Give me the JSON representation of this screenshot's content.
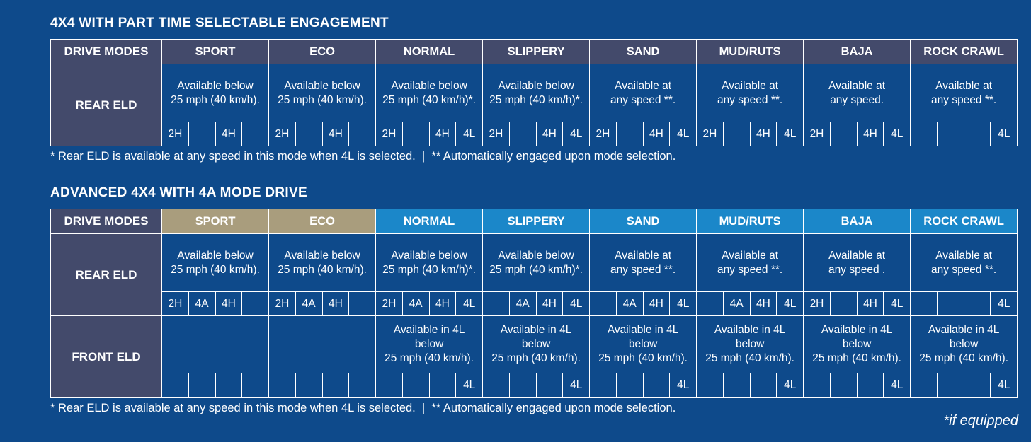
{
  "tables": [
    {
      "title": "4X4 WITH PART TIME SELECTABLE ENGAGEMENT",
      "header_label": "DRIVE MODES",
      "modes": [
        {
          "name": "SPORT",
          "color": "#434a6b"
        },
        {
          "name": "ECO",
          "color": "#434a6b"
        },
        {
          "name": "NORMAL",
          "color": "#434a6b"
        },
        {
          "name": "SLIPPERY",
          "color": "#434a6b"
        },
        {
          "name": "SAND",
          "color": "#434a6b"
        },
        {
          "name": "MUD/RUTS",
          "color": "#434a6b"
        },
        {
          "name": "BAJA",
          "color": "#434a6b"
        },
        {
          "name": "ROCK CRAWL",
          "color": "#434a6b"
        }
      ],
      "rows": [
        {
          "label": "REAR ELD",
          "texts": [
            "Available below\n25 mph (40 km/h).",
            "Available below\n25 mph (40 km/h).",
            "Available below\n25 mph (40 km/h)*.",
            "Available below\n25 mph (40 km/h)*.",
            "Available at\nany speed **.",
            "Available at\nany speed **.",
            "Available at\nany speed.",
            "Available at\nany speed **."
          ],
          "cells": [
            [
              "2H",
              null,
              "4H",
              null
            ],
            [
              "2H",
              null,
              "4H",
              null
            ],
            [
              "2H",
              null,
              "4H",
              "4L"
            ],
            [
              "2H",
              null,
              "4H",
              "4L"
            ],
            [
              "2H",
              null,
              "4H",
              "4L"
            ],
            [
              "2H",
              null,
              "4H",
              "4L"
            ],
            [
              "2H",
              null,
              "4H",
              "4L"
            ],
            [
              null,
              null,
              null,
              "4L"
            ]
          ]
        }
      ],
      "footnote": "* Rear ELD is available at any speed in this mode when 4L is selected.  |  ** Automatically engaged upon mode selection."
    },
    {
      "title": "ADVANCED 4X4 WITH 4A MODE DRIVE",
      "header_label": "DRIVE MODES",
      "modes": [
        {
          "name": "SPORT",
          "color": "#a99d7d"
        },
        {
          "name": "ECO",
          "color": "#a99d7d"
        },
        {
          "name": "NORMAL",
          "color": "#1b87c9"
        },
        {
          "name": "SLIPPERY",
          "color": "#1b87c9"
        },
        {
          "name": "SAND",
          "color": "#1b87c9"
        },
        {
          "name": "MUD/RUTS",
          "color": "#1b87c9"
        },
        {
          "name": "BAJA",
          "color": "#1b87c9"
        },
        {
          "name": "ROCK CRAWL",
          "color": "#1b87c9"
        }
      ],
      "rows": [
        {
          "label": "REAR ELD",
          "texts": [
            "Available below\n25 mph (40 km/h).",
            "Available below\n25 mph (40 km/h).",
            "Available below\n25 mph (40 km/h)*.",
            "Available below\n25 mph (40 km/h)*.",
            "Available at\nany speed **.",
            "Available at\nany speed **.",
            "Available at\nany speed .",
            "Available at\nany speed **."
          ],
          "cells": [
            [
              "2H",
              "4A",
              "4H",
              null
            ],
            [
              "2H",
              "4A",
              "4H",
              null
            ],
            [
              "2H",
              "4A",
              "4H",
              "4L"
            ],
            [
              null,
              "4A",
              "4H",
              "4L"
            ],
            [
              null,
              "4A",
              "4H",
              "4L"
            ],
            [
              null,
              "4A",
              "4H",
              "4L"
            ],
            [
              "2H",
              null,
              "4H",
              "4L"
            ],
            [
              null,
              null,
              null,
              "4L"
            ]
          ]
        },
        {
          "label": "FRONT ELD",
          "texts": [
            null,
            null,
            "Available in 4L\nbelow\n25 mph (40 km/h).",
            "Available in 4L\nbelow\n25 mph (40 km/h).",
            "Available in 4L\nbelow\n25 mph (40 km/h).",
            "Available in 4L\nbelow\n25 mph (40 km/h).",
            "Available in 4L\nbelow\n25 mph (40 km/h).",
            "Available in 4L\nbelow\n25 mph (40 km/h)."
          ],
          "cells": [
            [
              null,
              null,
              null,
              null
            ],
            [
              null,
              null,
              null,
              null
            ],
            [
              null,
              null,
              null,
              "4L"
            ],
            [
              null,
              null,
              null,
              "4L"
            ],
            [
              null,
              null,
              null,
              "4L"
            ],
            [
              null,
              null,
              null,
              "4L"
            ],
            [
              null,
              null,
              null,
              "4L"
            ],
            [
              null,
              null,
              null,
              "4L"
            ]
          ]
        }
      ],
      "footnote": "* Rear ELD is available at any speed in this mode when 4L is selected.  |  ** Automatically engaged upon mode selection."
    }
  ],
  "note": "*if equipped"
}
